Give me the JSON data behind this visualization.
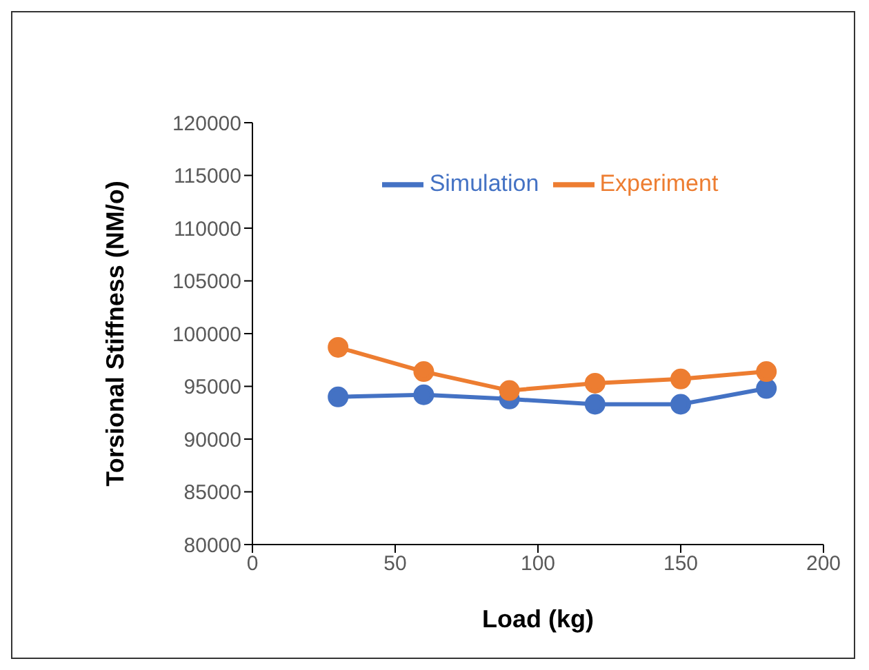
{
  "chart_data": {
    "type": "line",
    "xlabel": "Load (kg)",
    "ylabel": "Torsional Stiffness (NM/o)",
    "x": [
      30,
      60,
      90,
      120,
      150,
      180
    ],
    "series": [
      {
        "name": "Simulation",
        "color": "#4472c4",
        "values": [
          94000,
          94200,
          93800,
          93300,
          93300,
          94800
        ]
      },
      {
        "name": "Experiment",
        "color": "#ed7d31",
        "values": [
          98700,
          96400,
          94600,
          95300,
          95700,
          96400
        ]
      }
    ],
    "xlim": [
      0,
      200
    ],
    "xticks": [
      0,
      50,
      100,
      150,
      200
    ],
    "ylim": [
      80000,
      120000
    ],
    "yticks": [
      80000,
      85000,
      90000,
      95000,
      100000,
      105000,
      110000,
      115000,
      120000
    ],
    "grid": false,
    "legend": "top",
    "marker": "circle",
    "line_style": "solid"
  }
}
